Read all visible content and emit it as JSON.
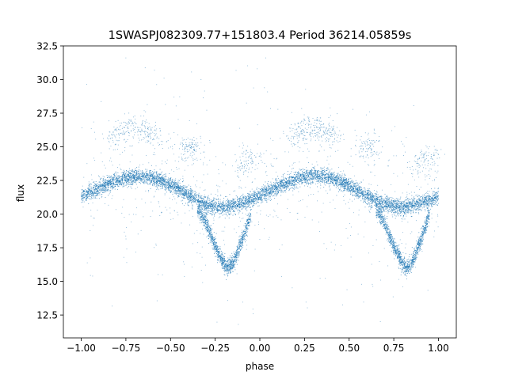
{
  "chart_data": {
    "type": "scatter",
    "title": "1SWASPJ082309.77+151803.4 Period 36214.05859s",
    "xlabel": "phase",
    "ylabel": "flux",
    "xlim": [
      -1.1,
      1.1
    ],
    "ylim": [
      10.8,
      32.5
    ],
    "xticks": [
      -1.0,
      -0.75,
      -0.5,
      -0.25,
      0.0,
      0.25,
      0.5,
      0.75,
      1.0
    ],
    "xtick_labels": [
      "−1.00",
      "−0.75",
      "−0.50",
      "−0.25",
      "0.00",
      "0.25",
      "0.50",
      "0.75",
      "1.00"
    ],
    "yticks": [
      12.5,
      15.0,
      17.5,
      20.0,
      22.5,
      25.0,
      27.5,
      30.0,
      32.5
    ],
    "ytick_labels": [
      "12.5",
      "15.0",
      "17.5",
      "20.0",
      "22.5",
      "25.0",
      "27.5",
      "30.0",
      "32.5"
    ],
    "grid": false,
    "marker_color": "#1f77b4",
    "series": [
      {
        "x": [
          -1.0,
          -0.9,
          -0.8,
          -0.7,
          -0.6,
          -0.5,
          -0.4,
          -0.3,
          -0.2,
          -0.1,
          0.0,
          0.1,
          0.2,
          0.3,
          0.4,
          0.5,
          0.6,
          0.7,
          0.8,
          0.9,
          1.0
        ],
        "y": [
          21.3,
          21.9,
          22.5,
          22.8,
          22.7,
          22.2,
          21.4,
          20.7,
          20.5,
          20.8,
          21.4,
          22.0,
          22.6,
          22.9,
          22.7,
          22.1,
          21.3,
          20.7,
          20.5,
          20.8,
          21.3
        ]
      },
      {
        "x": [
          -0.35,
          -0.3,
          -0.25,
          -0.2,
          -0.18,
          -0.15,
          -0.1,
          -0.05,
          0.65,
          0.7,
          0.75,
          0.8,
          0.82,
          0.85,
          0.9,
          0.95
        ],
        "y": [
          20.5,
          19.3,
          17.6,
          16.3,
          16.0,
          16.3,
          18.0,
          20.0,
          20.5,
          19.3,
          17.6,
          16.3,
          16.0,
          16.3,
          18.0,
          20.0
        ]
      },
      {
        "x": [
          -0.8,
          -0.75,
          -0.7,
          -0.65,
          -0.6,
          -0.4,
          -0.38,
          -0.1,
          -0.05,
          0.2,
          0.25,
          0.3,
          0.35,
          0.4,
          0.6,
          0.62,
          0.9,
          0.95
        ],
        "y": [
          25.8,
          26.3,
          26.5,
          26.2,
          25.9,
          25.2,
          24.6,
          23.5,
          24.3,
          25.8,
          26.3,
          26.5,
          26.2,
          25.9,
          25.2,
          24.6,
          23.5,
          24.3
        ]
      }
    ]
  }
}
